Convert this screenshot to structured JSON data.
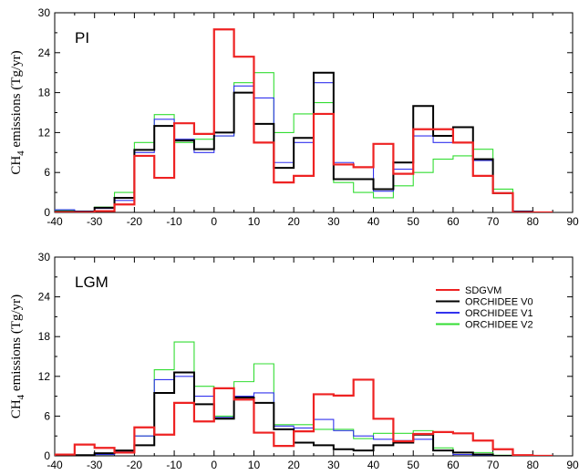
{
  "chart_data": [
    {
      "type": "line",
      "panel_label": "PI",
      "ylabel": "CH4 emissions (Tg/yr)",
      "xlim": [
        -40,
        90
      ],
      "ylim": [
        0,
        30
      ],
      "xticks": [
        -40,
        -30,
        -20,
        -10,
        0,
        10,
        20,
        30,
        40,
        50,
        60,
        70,
        80,
        90
      ],
      "yticks": [
        0,
        6,
        12,
        18,
        24,
        30
      ],
      "x_edges": [
        -40,
        -35,
        -30,
        -25,
        -20,
        -15,
        -10,
        -5,
        0,
        5,
        10,
        15,
        20,
        25,
        30,
        35,
        40,
        45,
        50,
        55,
        60,
        65,
        70,
        75,
        80,
        85
      ],
      "series": [
        {
          "name": "ORCHIDEE V2",
          "color": "#33dd33",
          "width": 1.1,
          "values": [
            0.3,
            0.1,
            0.8,
            3.0,
            10.5,
            14.7,
            10.5,
            11.0,
            11.5,
            19.5,
            21.0,
            12.0,
            14.8,
            16.5,
            4.5,
            3.0,
            2.2,
            4.0,
            6.0,
            8.0,
            8.5,
            9.5,
            3.5,
            0.2,
            0
          ]
        },
        {
          "name": "ORCHIDEE V1",
          "color": "#3333ee",
          "width": 1.1,
          "values": [
            0.4,
            0.2,
            0.6,
            1.8,
            9.0,
            14.0,
            11.0,
            9.0,
            11.5,
            19.0,
            17.2,
            7.5,
            10.5,
            19.5,
            7.5,
            6.8,
            3.2,
            6.5,
            11.5,
            10.5,
            10.5,
            7.8,
            2.9,
            0.2,
            0
          ]
        },
        {
          "name": "ORCHIDEE V0",
          "color": "#000000",
          "width": 2.0,
          "values": [
            0.1,
            0.1,
            0.7,
            2.2,
            9.4,
            13.0,
            10.8,
            9.5,
            12.0,
            18.0,
            13.3,
            6.7,
            11.2,
            21.0,
            5.0,
            5.0,
            3.5,
            7.5,
            16.0,
            11.5,
            12.8,
            8.0,
            2.9,
            0.1,
            0
          ]
        },
        {
          "name": "SDGVM",
          "color": "#ee2222",
          "width": 2.2,
          "values": [
            0,
            0,
            0.2,
            1.2,
            8.5,
            5.2,
            13.4,
            11.8,
            27.5,
            23.4,
            10.5,
            4.5,
            5.5,
            14.8,
            7.2,
            6.8,
            10.3,
            5.8,
            12.5,
            12.5,
            10.5,
            5.5,
            2.9,
            0,
            0
          ]
        }
      ]
    },
    {
      "type": "line",
      "panel_label": "LGM",
      "ylabel": "CH4 emissions (Tg/yr)",
      "xlim": [
        -40,
        90
      ],
      "ylim": [
        0,
        30
      ],
      "xticks": [
        -40,
        -30,
        -20,
        -10,
        0,
        10,
        20,
        30,
        40,
        50,
        60,
        70,
        80,
        90
      ],
      "yticks": [
        0,
        6,
        12,
        18,
        24,
        30
      ],
      "x_edges": [
        -40,
        -35,
        -30,
        -25,
        -20,
        -15,
        -10,
        -5,
        0,
        5,
        10,
        15,
        20,
        25,
        30,
        35,
        40,
        45,
        50,
        55,
        60,
        65,
        70,
        75,
        80,
        85
      ],
      "series": [
        {
          "name": "ORCHIDEE V2",
          "color": "#33dd33",
          "width": 1.1,
          "values": [
            0,
            0.1,
            0.2,
            0.6,
            3.0,
            13.0,
            17.2,
            10.5,
            6.0,
            11.2,
            13.9,
            4.7,
            4.7,
            4.0,
            4.0,
            2.6,
            3.4,
            3.4,
            3.8,
            1.2,
            0.5,
            0.5,
            0.1,
            0,
            0
          ]
        },
        {
          "name": "ORCHIDEE V1",
          "color": "#3333ee",
          "width": 1.1,
          "values": [
            0,
            0.1,
            0.2,
            0.6,
            3.0,
            11.5,
            12.0,
            9.0,
            5.8,
            9.0,
            9.5,
            4.5,
            4.2,
            5.5,
            3.8,
            3.0,
            2.5,
            2.3,
            2.5,
            0.8,
            0.2,
            0.1,
            0,
            0,
            0
          ]
        },
        {
          "name": "ORCHIDEE V0",
          "color": "#000000",
          "width": 2.0,
          "values": [
            0,
            0.1,
            0.4,
            0.8,
            1.6,
            9.5,
            12.6,
            7.8,
            5.6,
            8.8,
            8.0,
            4.0,
            2.0,
            1.6,
            1.0,
            0.8,
            1.6,
            2.0,
            3.2,
            0.8,
            0.5,
            0.2,
            0,
            0,
            0
          ]
        },
        {
          "name": "SDGVM",
          "color": "#ee2222",
          "width": 2.2,
          "values": [
            0.2,
            1.7,
            1.2,
            0.5,
            4.3,
            3.2,
            8.0,
            5.2,
            10.2,
            8.5,
            3.5,
            1.5,
            3.7,
            9.3,
            9.1,
            11.5,
            5.6,
            2.2,
            3.3,
            3.6,
            3.4,
            2.3,
            1.0,
            0.1,
            0
          ]
        }
      ]
    }
  ],
  "legend": {
    "entries": [
      {
        "name": "SDGVM",
        "color": "#ee2222"
      },
      {
        "name": "ORCHIDEE V0",
        "color": "#000000"
      },
      {
        "name": "ORCHIDEE V1",
        "color": "#3333ee"
      },
      {
        "name": "ORCHIDEE V2",
        "color": "#33dd33"
      }
    ]
  }
}
